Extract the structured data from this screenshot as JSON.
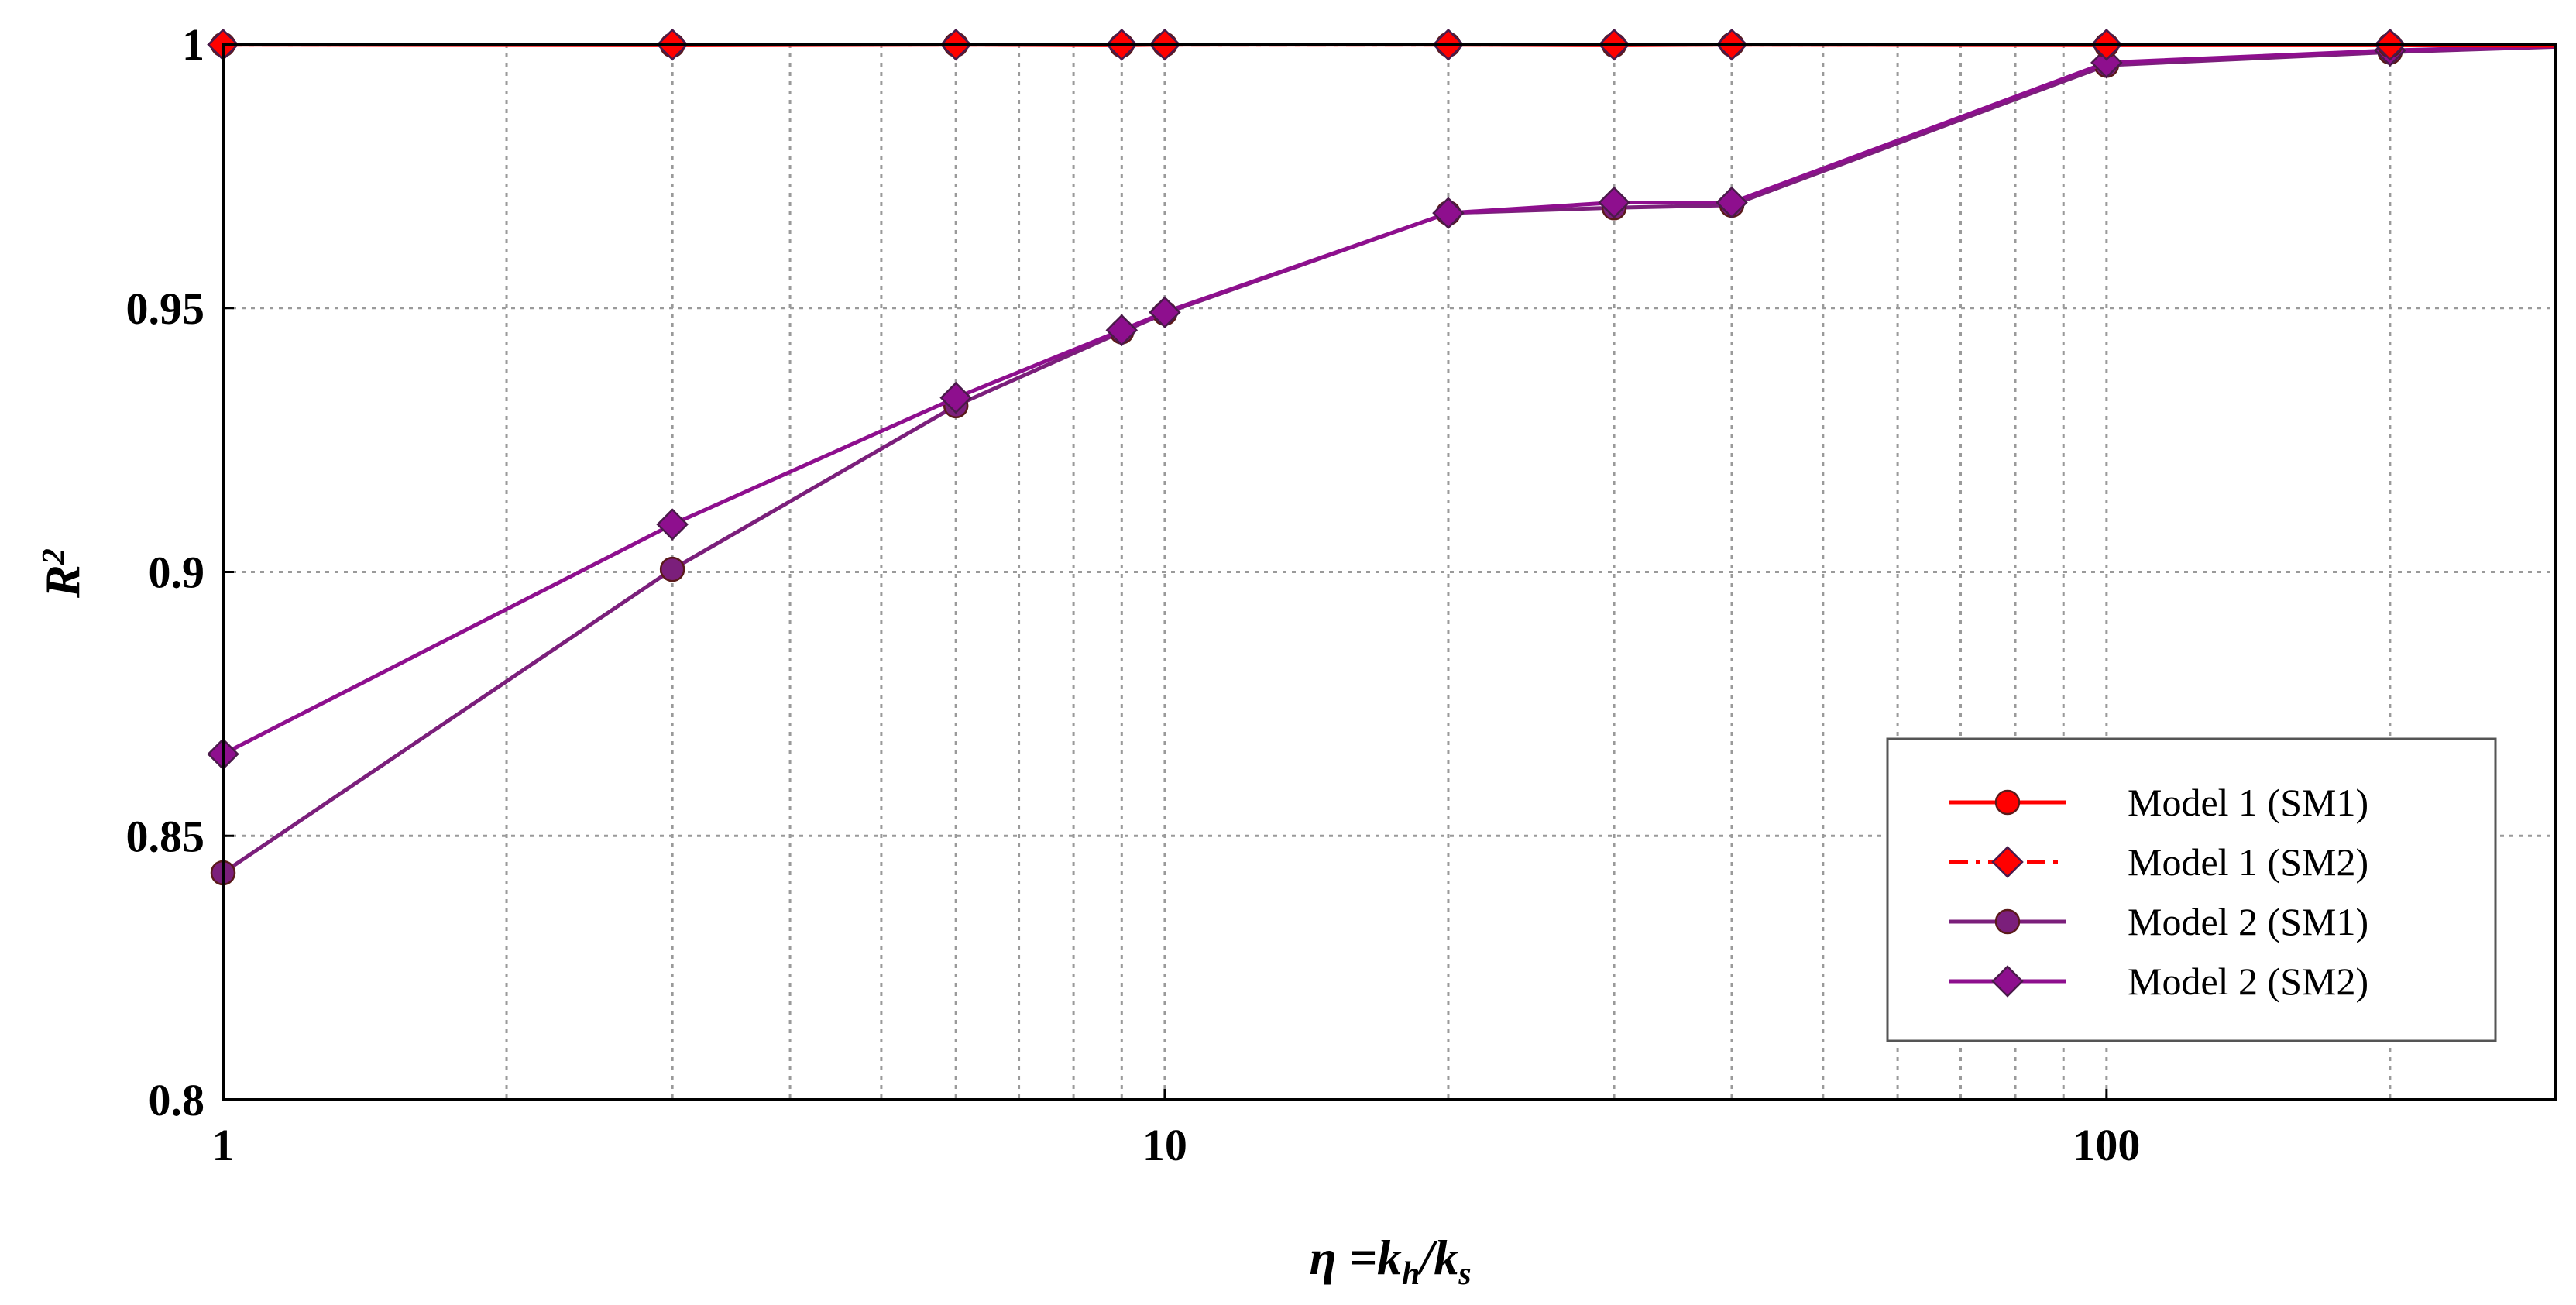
{
  "chart_data": {
    "type": "line",
    "title": "",
    "xlabel": "η =k_h/k_s",
    "ylabel": "R^2",
    "x_scale": "log",
    "xlim": [
      1,
      300
    ],
    "ylim": [
      0.8,
      1.0
    ],
    "grid": true,
    "legend_position": "lower-right",
    "x_ticks": [
      "1",
      "10",
      "100"
    ],
    "y_ticks": [
      "0.8",
      "0.85",
      "0.9",
      "0.95",
      "1"
    ],
    "x": [
      1,
      3,
      6,
      9,
      10,
      20,
      30,
      40,
      100,
      200,
      300
    ],
    "series": [
      {
        "name": "Model 1 (SM1)",
        "color": "#ff0000",
        "marker": "circle",
        "line": "solid",
        "values": [
          0.9999,
          0.9998,
          0.9999,
          0.9998,
          0.9999,
          0.9999,
          0.9998,
          0.9999,
          0.9998,
          0.9998,
          0.9997
        ]
      },
      {
        "name": "Model 1 (SM2)",
        "color": "#ff0000",
        "marker": "diamond",
        "line": "dashdot",
        "values": [
          0.9999,
          0.9999,
          0.9999,
          0.9999,
          0.9999,
          0.9999,
          0.9999,
          0.9999,
          0.9999,
          0.9999,
          0.9998
        ]
      },
      {
        "name": "Model 2 (SM1)",
        "color": "#7b1f7b",
        "marker": "circle",
        "line": "solid",
        "values": [
          0.843,
          0.9005,
          0.9315,
          0.9455,
          0.949,
          0.968,
          0.969,
          0.9695,
          0.996,
          0.9985,
          0.9995
        ]
      },
      {
        "name": "Model 2 (SM2)",
        "color": "#8e0f8e",
        "marker": "diamond",
        "line": "solid",
        "values": [
          0.8655,
          0.909,
          0.933,
          0.9458,
          0.9492,
          0.968,
          0.97,
          0.97,
          0.9965,
          0.9988,
          0.9996
        ]
      }
    ]
  }
}
